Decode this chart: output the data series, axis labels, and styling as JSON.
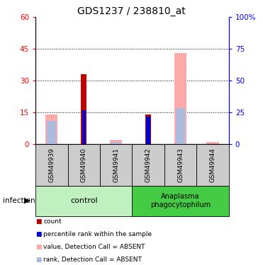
{
  "title": "GDS1237 / 238810_at",
  "samples": [
    "GSM49939",
    "GSM49940",
    "GSM49941",
    "GSM49942",
    "GSM49943",
    "GSM49944"
  ],
  "count": [
    0,
    33,
    0,
    14,
    0,
    0
  ],
  "percentile_rank": [
    0,
    16,
    0,
    13,
    0,
    0
  ],
  "value_absent": [
    14,
    0,
    2,
    0,
    43,
    1
  ],
  "rank_absent": [
    11,
    0,
    1,
    0,
    17,
    0
  ],
  "ylim_left": [
    0,
    60
  ],
  "ylim_right": [
    0,
    100
  ],
  "yticks_left": [
    0,
    15,
    30,
    45,
    60
  ],
  "yticks_right": [
    0,
    25,
    50,
    75,
    100
  ],
  "ytick_labels_left": [
    "0",
    "15",
    "30",
    "45",
    "60"
  ],
  "ytick_labels_right": [
    "0",
    "25",
    "50",
    "75",
    "100%"
  ],
  "colors": {
    "count": "#bb0000",
    "percentile_rank": "#0000cc",
    "value_absent": "#ffaaaa",
    "rank_absent": "#aabbdd",
    "background": "#ffffff",
    "sample_bg": "#cccccc",
    "group_control": "#c0f0c0",
    "group_anaplasma": "#44cc44"
  },
  "infection_label": "infection",
  "legend": [
    {
      "label": "count",
      "color": "#bb0000"
    },
    {
      "label": "percentile rank within the sample",
      "color": "#0000cc"
    },
    {
      "label": "value, Detection Call = ABSENT",
      "color": "#ffaaaa"
    },
    {
      "label": "rank, Detection Call = ABSENT",
      "color": "#aabbdd"
    }
  ]
}
